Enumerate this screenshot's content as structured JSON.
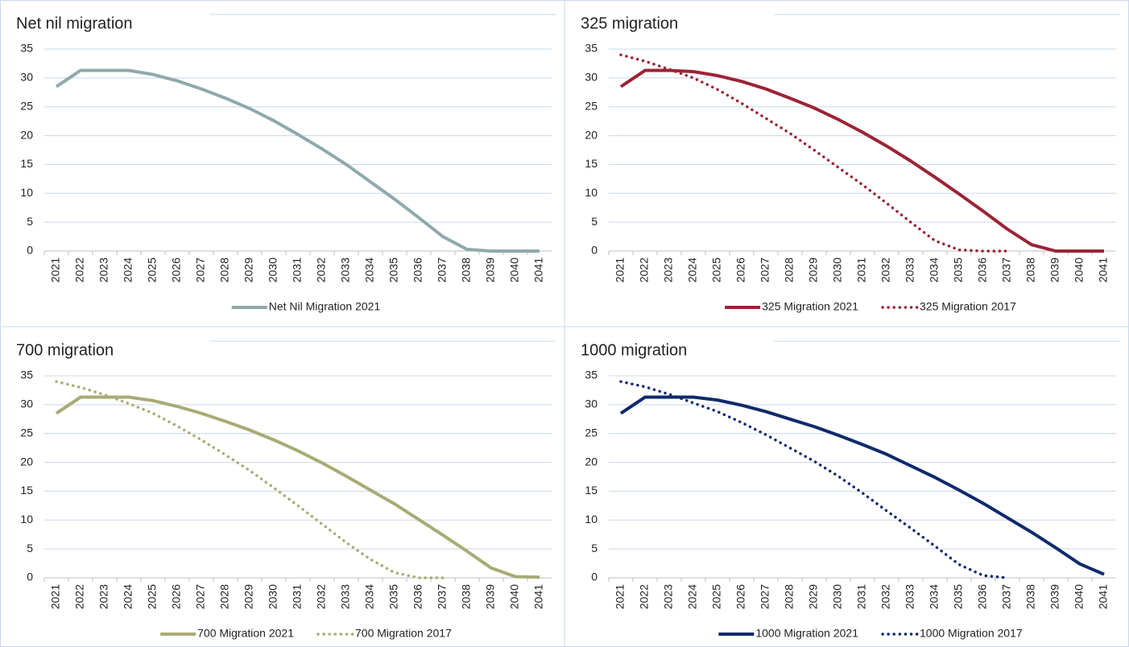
{
  "chart_data": [
    {
      "type": "line",
      "title": "Net nil migration",
      "categories": [
        "2021",
        "2022",
        "2023",
        "2024",
        "2025",
        "2026",
        "2027",
        "2028",
        "2029",
        "2030",
        "2031",
        "2032",
        "2033",
        "2034",
        "2035",
        "2036",
        "2037",
        "2038",
        "2039",
        "2040",
        "2041"
      ],
      "series": [
        {
          "name": "Net Nil Migration 2021",
          "color": "#8fa9ad",
          "line_style": "solid",
          "values": [
            28.5,
            31.3,
            31.3,
            31.3,
            30.6,
            29.5,
            28.1,
            26.5,
            24.7,
            22.6,
            20.2,
            17.7,
            15.0,
            12.0,
            9.0,
            5.8,
            2.5,
            0.3,
            0,
            0,
            0
          ]
        }
      ],
      "ylim": [
        0,
        35
      ],
      "yticks": [
        0,
        5,
        10,
        15,
        20,
        25,
        30,
        35
      ],
      "grid": true
    },
    {
      "type": "line",
      "title": "325 migration",
      "categories": [
        "2021",
        "2022",
        "2023",
        "2024",
        "2025",
        "2026",
        "2027",
        "2028",
        "2029",
        "2030",
        "2031",
        "2032",
        "2033",
        "2034",
        "2035",
        "2036",
        "2037",
        "2038",
        "2039",
        "2040",
        "2041"
      ],
      "series": [
        {
          "name": "325 Migration 2021",
          "color": "#9b2335",
          "line_style": "solid",
          "values": [
            28.5,
            31.3,
            31.3,
            31.1,
            30.4,
            29.4,
            28.1,
            26.5,
            24.8,
            22.8,
            20.6,
            18.2,
            15.6,
            12.8,
            9.9,
            6.9,
            3.8,
            1.1,
            0,
            0,
            0
          ]
        },
        {
          "name": "325 Migration 2017",
          "color": "#9b2335",
          "line_style": "dotted",
          "values": [
            34.0,
            32.9,
            31.5,
            30.0,
            28.0,
            25.6,
            23.0,
            20.4,
            17.5,
            14.5,
            11.5,
            8.3,
            5.0,
            1.8,
            0.2,
            0,
            0,
            null,
            null,
            null,
            null
          ]
        }
      ],
      "ylim": [
        0,
        35
      ],
      "yticks": [
        0,
        5,
        10,
        15,
        20,
        25,
        30,
        35
      ],
      "grid": true
    },
    {
      "type": "line",
      "title": "700 migration",
      "categories": [
        "2021",
        "2022",
        "2023",
        "2024",
        "2025",
        "2026",
        "2027",
        "2028",
        "2029",
        "2030",
        "2031",
        "2032",
        "2033",
        "2034",
        "2035",
        "2036",
        "2037",
        "2038",
        "2039",
        "2040",
        "2041"
      ],
      "series": [
        {
          "name": "700 Migration 2021",
          "color": "#a8ab74",
          "line_style": "solid",
          "values": [
            28.5,
            31.3,
            31.3,
            31.3,
            30.7,
            29.7,
            28.5,
            27.1,
            25.6,
            23.9,
            22.0,
            19.9,
            17.6,
            15.2,
            12.8,
            10.1,
            7.4,
            4.6,
            1.7,
            0.2,
            0.1
          ]
        },
        {
          "name": "700 Migration 2017",
          "color": "#a8ab74",
          "line_style": "dotted",
          "values": [
            34.0,
            33.0,
            31.7,
            30.2,
            28.5,
            26.3,
            23.9,
            21.3,
            18.6,
            15.6,
            12.5,
            9.3,
            6.1,
            3.2,
            0.9,
            0,
            0,
            null,
            null,
            null,
            null
          ]
        }
      ],
      "ylim": [
        0,
        35
      ],
      "yticks": [
        0,
        5,
        10,
        15,
        20,
        25,
        30,
        35
      ],
      "grid": true
    },
    {
      "type": "line",
      "title": "1000 migration",
      "categories": [
        "2021",
        "2022",
        "2023",
        "2024",
        "2025",
        "2026",
        "2027",
        "2028",
        "2029",
        "2030",
        "2031",
        "2032",
        "2033",
        "2034",
        "2035",
        "2036",
        "2037",
        "2038",
        "2039",
        "2040",
        "2041"
      ],
      "series": [
        {
          "name": "1000 Migration 2021",
          "color": "#0e2a6b",
          "line_style": "solid",
          "values": [
            28.5,
            31.3,
            31.3,
            31.3,
            30.8,
            29.9,
            28.8,
            27.5,
            26.2,
            24.7,
            23.1,
            21.4,
            19.4,
            17.4,
            15.2,
            12.9,
            10.4,
            7.9,
            5.2,
            2.4,
            0.6
          ]
        },
        {
          "name": "1000 Migration 2017",
          "color": "#0e2a6b",
          "line_style": "dotted",
          "values": [
            34.0,
            33.1,
            31.8,
            30.3,
            28.8,
            26.9,
            24.8,
            22.5,
            20.2,
            17.6,
            14.7,
            11.6,
            8.6,
            5.5,
            2.3,
            0.4,
            0,
            null,
            null,
            null,
            null
          ]
        }
      ],
      "ylim": [
        0,
        35
      ],
      "yticks": [
        0,
        5,
        10,
        15,
        20,
        25,
        30,
        35
      ],
      "grid": true
    }
  ]
}
